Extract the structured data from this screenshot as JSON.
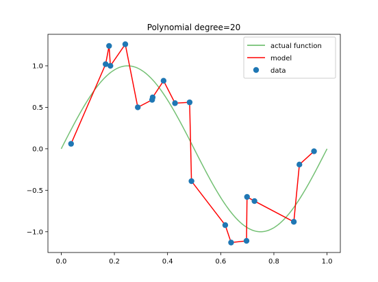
{
  "chart_data": {
    "type": "line",
    "title": "Polynomial degree=20",
    "xlabel": "",
    "ylabel": "",
    "xlim": [
      -0.05,
      1.05
    ],
    "ylim": [
      -1.25,
      1.38
    ],
    "x_ticks": [
      0.0,
      0.2,
      0.4,
      0.6,
      0.8,
      1.0
    ],
    "x_tick_labels": [
      "0.0",
      "0.2",
      "0.4",
      "0.6",
      "0.8",
      "1.0"
    ],
    "y_ticks": [
      -1.0,
      -0.5,
      0.0,
      0.5,
      1.0
    ],
    "y_tick_labels": [
      "−1.0",
      "−0.5",
      "0.0",
      "0.5",
      "1.0"
    ],
    "grid": false,
    "legend_position": "top-right",
    "series": [
      {
        "name": "actual function",
        "kind": "line",
        "color": "#5bb55b",
        "function": "sin(2*pi*x)",
        "x_range": [
          0,
          1
        ]
      },
      {
        "name": "model",
        "kind": "line",
        "color": "#ff0000",
        "points": [
          [
            0.037,
            0.06
          ],
          [
            0.167,
            1.02
          ],
          [
            0.18,
            1.24
          ],
          [
            0.185,
            1.0
          ],
          [
            0.241,
            1.26
          ],
          [
            0.288,
            0.5
          ],
          [
            0.342,
            0.59
          ],
          [
            0.344,
            0.62
          ],
          [
            0.385,
            0.82
          ],
          [
            0.428,
            0.55
          ],
          [
            0.483,
            0.56
          ],
          [
            0.49,
            -0.39
          ],
          [
            0.617,
            -0.92
          ],
          [
            0.639,
            -1.13
          ],
          [
            0.697,
            -1.11
          ],
          [
            0.699,
            -0.58
          ],
          [
            0.727,
            -0.63
          ],
          [
            0.875,
            -0.88
          ],
          [
            0.896,
            -0.19
          ],
          [
            0.951,
            -0.03
          ]
        ]
      },
      {
        "name": "data",
        "kind": "scatter",
        "color": "#1f77b4",
        "points": [
          [
            0.037,
            0.06
          ],
          [
            0.167,
            1.02
          ],
          [
            0.18,
            1.24
          ],
          [
            0.185,
            1.0
          ],
          [
            0.241,
            1.26
          ],
          [
            0.288,
            0.5
          ],
          [
            0.342,
            0.59
          ],
          [
            0.344,
            0.62
          ],
          [
            0.385,
            0.82
          ],
          [
            0.428,
            0.55
          ],
          [
            0.483,
            0.56
          ],
          [
            0.49,
            -0.39
          ],
          [
            0.617,
            -0.92
          ],
          [
            0.639,
            -1.13
          ],
          [
            0.697,
            -1.11
          ],
          [
            0.699,
            -0.58
          ],
          [
            0.727,
            -0.63
          ],
          [
            0.875,
            -0.88
          ],
          [
            0.896,
            -0.19
          ],
          [
            0.951,
            -0.03
          ]
        ]
      }
    ]
  }
}
